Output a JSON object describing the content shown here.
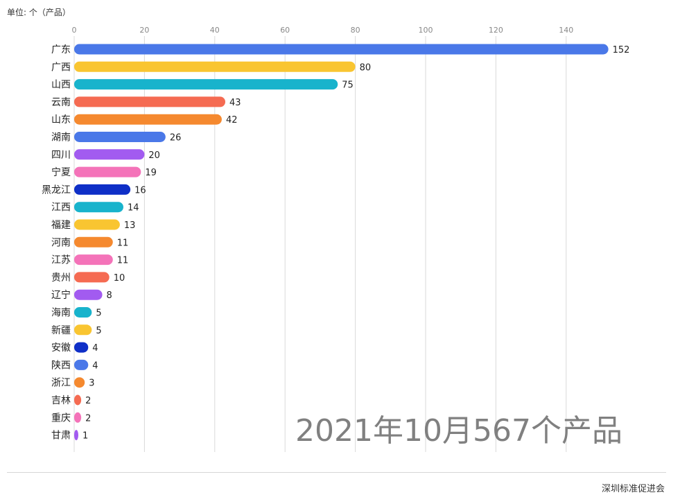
{
  "header": {
    "unit_label": "单位: 个（产品）"
  },
  "overlay": {
    "title": "2021年10月567个产品"
  },
  "footer": {
    "org": "深圳标准促进会"
  },
  "chart_data": {
    "type": "bar",
    "orientation": "horizontal",
    "title": "",
    "xlabel": "",
    "ylabel": "",
    "xlim": [
      0,
      152
    ],
    "ticks": [
      0,
      20,
      40,
      60,
      80,
      100,
      120,
      140
    ],
    "grid": true,
    "categories": [
      "广东",
      "广西",
      "山西",
      "云南",
      "山东",
      "湖南",
      "四川",
      "宁夏",
      "黑龙江",
      "江西",
      "福建",
      "河南",
      "江苏",
      "贵州",
      "辽宁",
      "海南",
      "新疆",
      "安徽",
      "陕西",
      "浙江",
      "吉林",
      "重庆",
      "甘肃"
    ],
    "values": [
      152,
      80,
      75,
      43,
      42,
      26,
      20,
      19,
      16,
      14,
      13,
      11,
      11,
      10,
      8,
      5,
      5,
      4,
      4,
      3,
      2,
      2,
      1
    ],
    "colors": [
      "#4a78e8",
      "#f9c531",
      "#18b3cc",
      "#f56b52",
      "#f5892f",
      "#4a78e8",
      "#a25bf0",
      "#f473b9",
      "#0f2fc7",
      "#18b3cc",
      "#f9c531",
      "#f5892f",
      "#f473b9",
      "#f56b52",
      "#a25bf0",
      "#18b3cc",
      "#f9c531",
      "#0f2fc7",
      "#4a78e8",
      "#f5892f",
      "#f56b52",
      "#f473b9",
      "#a25bf0"
    ]
  }
}
